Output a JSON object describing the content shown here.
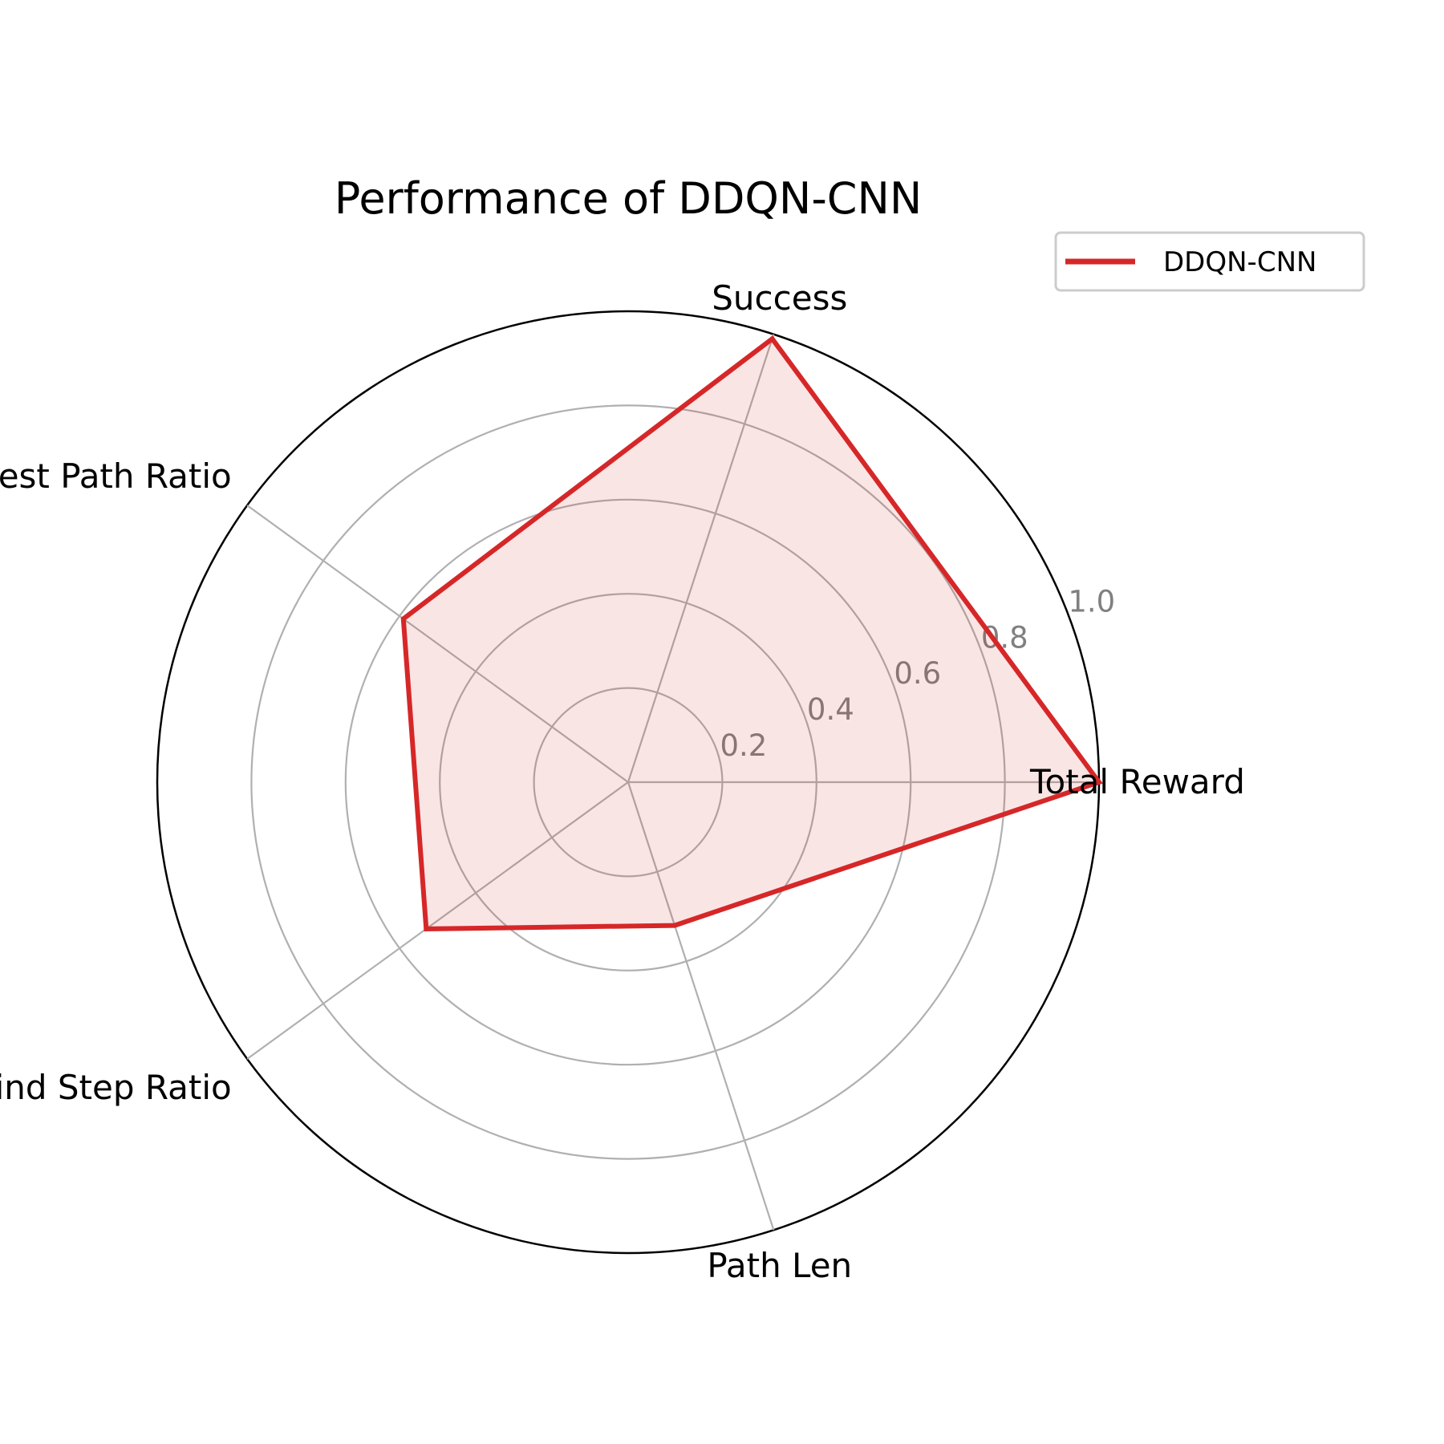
{
  "chart_data": {
    "type": "radar",
    "title": "Performance of DDQN-CNN",
    "categories": [
      "Total Reward",
      "Success",
      "Shortest Path Ratio",
      "Blind Step Ratio",
      "Path Len"
    ],
    "series": [
      {
        "name": "DDQN-CNN",
        "values": [
          1.0,
          0.99,
          0.59,
          0.53,
          0.32
        ]
      }
    ],
    "rlim": [
      0,
      1.0
    ],
    "rticks": [
      0.2,
      0.4,
      0.6,
      0.8,
      1.0
    ],
    "rtick_labels": [
      "0.2",
      "0.4",
      "0.6",
      "0.8",
      "1.0"
    ],
    "grid": true,
    "legend_position": "top-right",
    "colors": {
      "series": "#d62728",
      "fill": "#f7e6e6",
      "grid": "#b0b0b0",
      "tick_label": "#808080"
    }
  }
}
